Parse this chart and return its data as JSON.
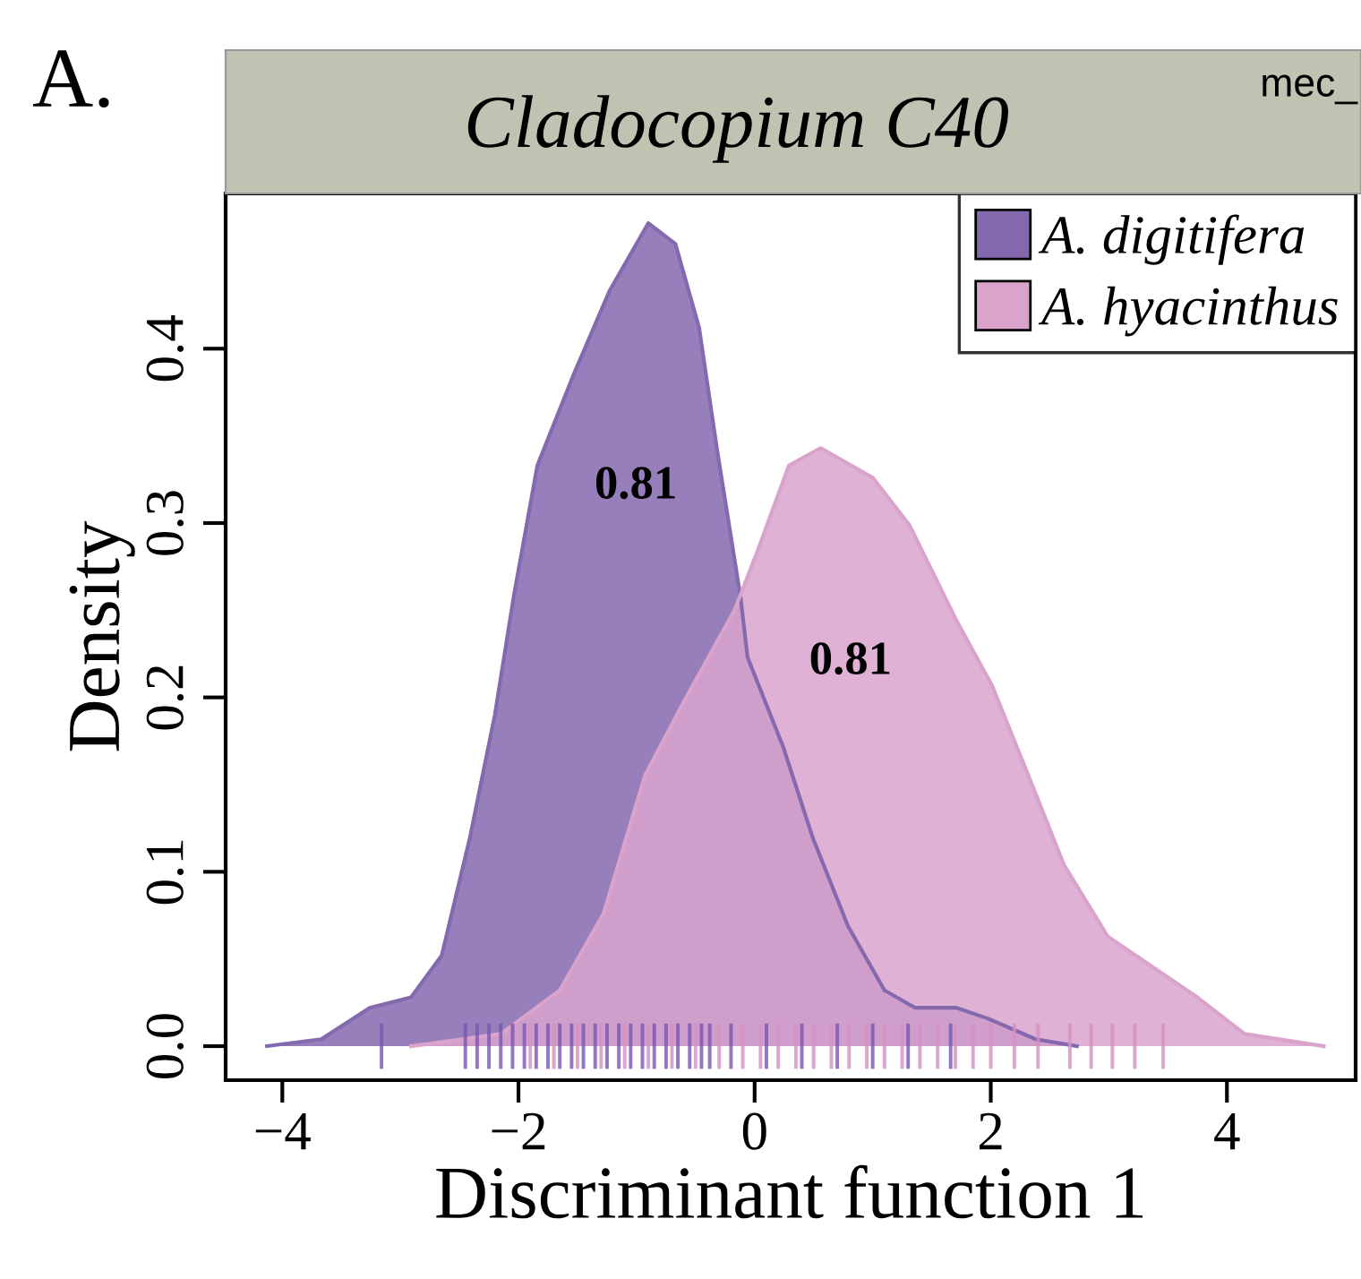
{
  "chart_data": {
    "type": "area",
    "title": "Cladocopium C40",
    "xlabel": "Discriminant function 1",
    "ylabel": "Density",
    "xlim": [
      -4.48,
      5.09
    ],
    "ylim": [
      -0.0195,
      0.489
    ],
    "xticks": [
      {
        "value": -4,
        "label": "−4"
      },
      {
        "value": -2,
        "label": "−2"
      },
      0,
      2,
      4
    ],
    "yticks": [
      {
        "value": 0,
        "label": "0.0"
      },
      0.1,
      0.2,
      0.3,
      0.4
    ],
    "grid": false,
    "legend": "top right",
    "series": [
      {
        "name": "A. digitifera",
        "color": "#8469ae",
        "x": [
          -4.13,
          -3.67,
          -3.26,
          -2.91,
          -2.65,
          -2.41,
          -2.2,
          -2.04,
          -1.84,
          -1.54,
          -1.23,
          -0.9,
          -0.67,
          -0.47,
          -0.32,
          -0.12,
          -0.06,
          0.24,
          0.49,
          0.79,
          1.1,
          1.36,
          1.71,
          1.97,
          2.38,
          2.73
        ],
        "values": [
          0,
          0.004,
          0.022,
          0.028,
          0.052,
          0.12,
          0.19,
          0.258,
          0.333,
          0.384,
          0.433,
          0.472,
          0.46,
          0.412,
          0.343,
          0.258,
          0.223,
          0.172,
          0.12,
          0.069,
          0.032,
          0.022,
          0.022,
          0.016,
          0.004,
          0
        ]
      },
      {
        "name": "A. hyacinthus",
        "color": "#d9a3cc",
        "x": [
          -2.91,
          -2.15,
          -1.65,
          -1.28,
          -0.93,
          -0.58,
          -0.17,
          0.03,
          0.29,
          0.56,
          1.0,
          1.31,
          1.71,
          2.01,
          2.32,
          2.62,
          2.99,
          3.38,
          3.75,
          4.15,
          4.82
        ],
        "values": [
          0,
          0.007,
          0.032,
          0.076,
          0.155,
          0.2,
          0.25,
          0.285,
          0.333,
          0.343,
          0.326,
          0.299,
          0.244,
          0.207,
          0.155,
          0.104,
          0.063,
          0.045,
          0.028,
          0.007,
          0
        ]
      },
      {
        "type": "bar",
        "color": "#7a55b0",
        "x": [
          -3.16,
          -2.45,
          -2.35,
          -2.25,
          -2.15,
          -2.05,
          -1.95,
          -1.85,
          -1.75,
          -1.65,
          -1.55,
          -1.45,
          -1.35,
          -1.25,
          -1.15,
          -1.05,
          -0.95,
          -0.85,
          -0.75,
          -0.65,
          -0.55,
          -0.45,
          -0.38,
          -0.2,
          0.1,
          0.4,
          0.7,
          1.0,
          1.3,
          1.66
        ],
        "base": [
          -0.013,
          -0.013,
          -0.013,
          -0.013,
          -0.013,
          -0.013,
          -0.013,
          -0.013,
          -0.013,
          -0.013,
          -0.013,
          -0.013,
          -0.013,
          -0.013,
          -0.013,
          -0.013,
          -0.013,
          -0.013,
          -0.013,
          -0.013,
          -0.013,
          -0.013,
          -0.013,
          -0.013,
          -0.013,
          -0.013,
          -0.013,
          -0.013,
          -0.013,
          -0.013
        ],
        "values": [
          0.026,
          0.026,
          0.026,
          0.026,
          0.026,
          0.026,
          0.026,
          0.026,
          0.026,
          0.026,
          0.026,
          0.026,
          0.026,
          0.026,
          0.026,
          0.026,
          0.026,
          0.026,
          0.026,
          0.026,
          0.026,
          0.026,
          0.026,
          0.026,
          0.026,
          0.026,
          0.026,
          0.026,
          0.026,
          0.026
        ]
      },
      {
        "type": "bar",
        "color": "#d490c4",
        "x": [
          -1.9,
          -1.7,
          -1.5,
          -1.3,
          -1.1,
          -0.9,
          -0.7,
          -0.5,
          -0.3,
          -0.1,
          0.05,
          0.2,
          0.35,
          0.5,
          0.65,
          0.8,
          0.95,
          1.1,
          1.25,
          1.4,
          1.55,
          1.7,
          1.85,
          2.0,
          2.2,
          2.4,
          2.67,
          2.85,
          3.03,
          3.22,
          3.46
        ],
        "base": [
          -0.013,
          -0.013,
          -0.013,
          -0.013,
          -0.013,
          -0.013,
          -0.013,
          -0.013,
          -0.013,
          -0.013,
          -0.013,
          -0.013,
          -0.013,
          -0.013,
          -0.013,
          -0.013,
          -0.013,
          -0.013,
          -0.013,
          -0.013,
          -0.013,
          -0.013,
          -0.013,
          -0.013,
          -0.013,
          -0.013,
          -0.013,
          -0.013,
          -0.013,
          -0.013,
          -0.013
        ],
        "values": [
          0.026,
          0.026,
          0.026,
          0.026,
          0.026,
          0.026,
          0.026,
          0.026,
          0.026,
          0.026,
          0.026,
          0.026,
          0.026,
          0.026,
          0.026,
          0.026,
          0.026,
          0.026,
          0.026,
          0.026,
          0.026,
          0.026,
          0.026,
          0.026,
          0.026,
          0.026,
          0.026,
          0.026,
          0.026,
          0.026,
          0.026
        ]
      }
    ],
    "annotations": [
      "0.81",
      "0.81",
      "A.",
      "mec_"
    ]
  }
}
